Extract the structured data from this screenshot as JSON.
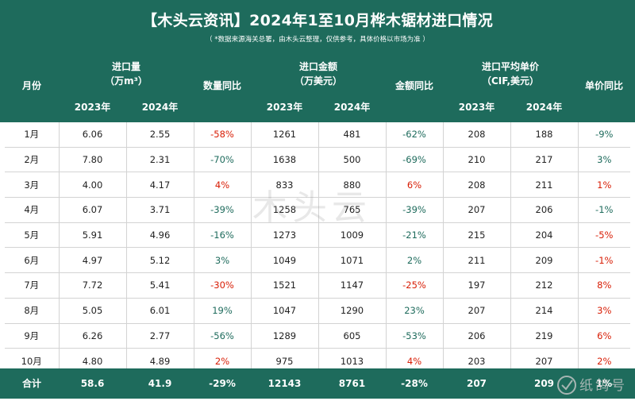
{
  "title": "【木头云资讯】2024年1至10月桦木锯材进口情况",
  "subtitle": "（ *数据来源海关总署，由木头云整理，仅供参考，具体价格以市场为准 ）",
  "header": {
    "month": "月份",
    "qty_group": "进口量",
    "qty_unit": "（万m³）",
    "qty_yoy": "数量同比",
    "amt_group": "进口金额",
    "amt_unit": "（万美元）",
    "amt_yoy": "金额同比",
    "price_group": "进口平均单价",
    "price_unit": "（CIF,美元）",
    "price_yoy": "单价同比",
    "y2023": "2023年",
    "y2024": "2024年"
  },
  "rows": [
    {
      "month": "1月",
      "q23": "6.06",
      "q24": "2.55",
      "qy": "-58%",
      "a23": "1261",
      "a24": "481",
      "ay": "-62%",
      "p23": "208",
      "p24": "188",
      "py": "-9%",
      "qy_c": "red",
      "ay_c": "green",
      "py_c": "green"
    },
    {
      "month": "2月",
      "q23": "7.80",
      "q24": "2.31",
      "qy": "-70%",
      "a23": "1638",
      "a24": "500",
      "ay": "-69%",
      "p23": "210",
      "p24": "217",
      "py": "3%",
      "qy_c": "green",
      "ay_c": "green",
      "py_c": "green"
    },
    {
      "month": "3月",
      "q23": "4.00",
      "q24": "4.17",
      "qy": "4%",
      "a23": "833",
      "a24": "880",
      "ay": "6%",
      "p23": "208",
      "p24": "211",
      "py": "1%",
      "qy_c": "red",
      "ay_c": "red",
      "py_c": "red"
    },
    {
      "month": "4月",
      "q23": "6.07",
      "q24": "3.71",
      "qy": "-39%",
      "a23": "1258",
      "a24": "765",
      "ay": "-39%",
      "p23": "207",
      "p24": "206",
      "py": "-1%",
      "qy_c": "green",
      "ay_c": "green",
      "py_c": "green"
    },
    {
      "month": "5月",
      "q23": "5.91",
      "q24": "4.96",
      "qy": "-16%",
      "a23": "1273",
      "a24": "1009",
      "ay": "-21%",
      "p23": "215",
      "p24": "204",
      "py": "-5%",
      "qy_c": "green",
      "ay_c": "green",
      "py_c": "red"
    },
    {
      "month": "6月",
      "q23": "4.97",
      "q24": "5.12",
      "qy": "3%",
      "a23": "1049",
      "a24": "1071",
      "ay": "2%",
      "p23": "211",
      "p24": "209",
      "py": "-1%",
      "qy_c": "green",
      "ay_c": "green",
      "py_c": "red"
    },
    {
      "month": "7月",
      "q23": "7.72",
      "q24": "5.41",
      "qy": "-30%",
      "a23": "1521",
      "a24": "1147",
      "ay": "-25%",
      "p23": "197",
      "p24": "212",
      "py": "8%",
      "qy_c": "red",
      "ay_c": "red",
      "py_c": "red"
    },
    {
      "month": "8月",
      "q23": "5.05",
      "q24": "6.01",
      "qy": "19%",
      "a23": "1047",
      "a24": "1290",
      "ay": "23%",
      "p23": "207",
      "p24": "214",
      "py": "3%",
      "qy_c": "green",
      "ay_c": "green",
      "py_c": "red"
    },
    {
      "month": "9月",
      "q23": "6.26",
      "q24": "2.77",
      "qy": "-56%",
      "a23": "1289",
      "a24": "605",
      "ay": "-53%",
      "p23": "206",
      "p24": "219",
      "py": "6%",
      "qy_c": "green",
      "ay_c": "green",
      "py_c": "red"
    },
    {
      "month": "10月",
      "q23": "4.80",
      "q24": "4.89",
      "qy": "2%",
      "a23": "975",
      "a24": "1013",
      "ay": "4%",
      "p23": "203",
      "p24": "207",
      "py": "2%",
      "qy_c": "red",
      "ay_c": "red",
      "py_c": "red"
    }
  ],
  "total": {
    "month": "合计",
    "q23": "58.6",
    "q24": "41.9",
    "qy": "-29%",
    "a23": "12143",
    "a24": "8761",
    "ay": "-28%",
    "p23": "207",
    "p24": "209",
    "py": "1%"
  }
}
